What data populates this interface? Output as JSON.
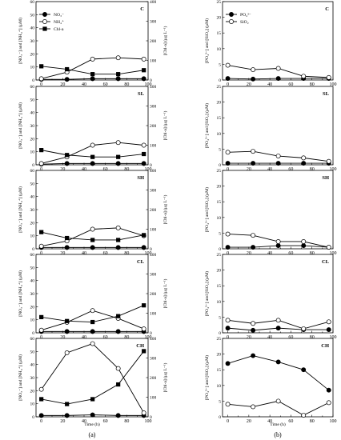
{
  "figure": {
    "left_ylabel": "[NO₃⁻] and [NH₄⁺] (µM)",
    "right_ylabel": "[Chl-a] (µg L⁻¹)",
    "b_ylabel": "[PO₄³⁻] and [SiO₂] (µM)",
    "xlabel": "Time (h)",
    "sublabel_a": "(a)",
    "sublabel_b": "(b)",
    "legend_a": [
      "NO₃⁻",
      "NH₄⁺",
      "Chl-a"
    ],
    "legend_b": [
      "PO₄³⁻",
      "SiO₂"
    ],
    "colors": {
      "ink": "#000000",
      "open": "#ffffff",
      "gray": "#888888"
    }
  },
  "chart_data": [
    {
      "type": "line",
      "panel": "C",
      "group": "a",
      "x": [
        0,
        24,
        48,
        72,
        96
      ],
      "ylim": [
        0,
        60
      ],
      "y2lim": [
        0,
        400
      ],
      "yticks": [
        0,
        10,
        20,
        30,
        40,
        50,
        60
      ],
      "y2ticks": [
        0,
        100,
        200,
        300,
        400
      ],
      "xticks": [
        0,
        10,
        20,
        30,
        40,
        50,
        60,
        70,
        80,
        90,
        100
      ],
      "series": [
        {
          "name": "NO₃⁻",
          "axis": "left",
          "marker": "circle-filled",
          "values": [
            0.5,
            0.5,
            1,
            1,
            1
          ]
        },
        {
          "name": "NH₄⁺",
          "axis": "left",
          "marker": "circle-open",
          "values": [
            1,
            6,
            16,
            17,
            16
          ]
        },
        {
          "name": "Chl-a",
          "axis": "right",
          "marker": "square-filled",
          "values": [
            70,
            55,
            30,
            30,
            50
          ]
        }
      ]
    },
    {
      "type": "line",
      "panel": "SL",
      "group": "a",
      "x": [
        0,
        24,
        48,
        72,
        96
      ],
      "ylim": [
        0,
        60
      ],
      "y2lim": [
        0,
        400
      ],
      "yticks": [
        0,
        10,
        20,
        30,
        40,
        50,
        60
      ],
      "y2ticks": [
        0,
        100,
        200,
        300,
        400
      ],
      "xticks": [
        0,
        10,
        20,
        30,
        40,
        50,
        60,
        70,
        80,
        90,
        100
      ],
      "series": [
        {
          "name": "NO₃⁻",
          "axis": "left",
          "marker": "circle-filled",
          "values": [
            0.5,
            1,
            1,
            1,
            1
          ]
        },
        {
          "name": "NH₄⁺",
          "axis": "left",
          "marker": "circle-open",
          "values": [
            1,
            6,
            15,
            17,
            15
          ]
        },
        {
          "name": "Chl-a",
          "axis": "right",
          "marker": "square-filled",
          "values": [
            75,
            50,
            40,
            40,
            55
          ]
        }
      ]
    },
    {
      "type": "line",
      "panel": "SH",
      "group": "a",
      "x": [
        0,
        24,
        48,
        72,
        96
      ],
      "ylim": [
        0,
        60
      ],
      "y2lim": [
        0,
        400
      ],
      "yticks": [
        0,
        10,
        20,
        30,
        40,
        50,
        60
      ],
      "y2ticks": [
        0,
        100,
        200,
        300,
        400
      ],
      "xticks": [
        0,
        10,
        20,
        30,
        40,
        50,
        60,
        70,
        80,
        90,
        100
      ],
      "series": [
        {
          "name": "NO₃⁻",
          "axis": "left",
          "marker": "circle-filled",
          "values": [
            1,
            1,
            1,
            1,
            1
          ]
        },
        {
          "name": "NH₄⁺",
          "axis": "left",
          "marker": "circle-open",
          "values": [
            2,
            6,
            15,
            16,
            10
          ]
        },
        {
          "name": "Chl-a",
          "axis": "right",
          "marker": "square-filled",
          "values": [
            85,
            55,
            45,
            45,
            70
          ]
        }
      ]
    },
    {
      "type": "line",
      "panel": "CL",
      "group": "a",
      "x": [
        0,
        24,
        48,
        72,
        96
      ],
      "ylim": [
        0,
        60
      ],
      "y2lim": [
        0,
        400
      ],
      "yticks": [
        0,
        10,
        20,
        30,
        40,
        50,
        60
      ],
      "y2ticks": [
        0,
        100,
        200,
        300,
        400
      ],
      "xticks": [
        0,
        10,
        20,
        30,
        40,
        50,
        60,
        70,
        80,
        90,
        100
      ],
      "series": [
        {
          "name": "NO₃⁻",
          "axis": "left",
          "marker": "circle-filled",
          "values": [
            1,
            1,
            1,
            1,
            1
          ]
        },
        {
          "name": "NH₄⁺",
          "axis": "left",
          "marker": "circle-open",
          "values": [
            2,
            8,
            17,
            11,
            3
          ]
        },
        {
          "name": "Chl-a",
          "axis": "right",
          "marker": "square-filled",
          "values": [
            80,
            60,
            55,
            85,
            140
          ]
        }
      ]
    },
    {
      "type": "line",
      "panel": "CH",
      "group": "a",
      "x": [
        0,
        24,
        48,
        72,
        96
      ],
      "ylim": [
        0,
        60
      ],
      "y2lim": [
        0,
        400
      ],
      "yticks": [
        0,
        10,
        20,
        30,
        40,
        50,
        60
      ],
      "y2ticks": [
        0,
        100,
        200,
        300,
        400
      ],
      "xticks": [
        0,
        10,
        20,
        30,
        40,
        50,
        60,
        70,
        80,
        90,
        100
      ],
      "series": [
        {
          "name": "NO₃⁻",
          "axis": "left",
          "marker": "circle-filled",
          "values": [
            1,
            1,
            1.5,
            1,
            1
          ]
        },
        {
          "name": "NH₄⁺",
          "axis": "left",
          "marker": "circle-open",
          "values": [
            21,
            49,
            56,
            37,
            3
          ]
        },
        {
          "name": "Chl-a",
          "axis": "right",
          "marker": "square-filled",
          "values": [
            90,
            65,
            90,
            165,
            335
          ]
        }
      ]
    },
    {
      "type": "line",
      "panel": "C",
      "group": "b",
      "x": [
        0,
        24,
        48,
        72,
        96
      ],
      "ylim": [
        0,
        25
      ],
      "yticks": [
        0,
        5,
        10,
        15,
        20,
        25
      ],
      "xticks": [
        0,
        10,
        20,
        30,
        40,
        50,
        60,
        70,
        80,
        90,
        100
      ],
      "series": [
        {
          "name": "PO₄³⁻",
          "axis": "left",
          "marker": "circle-filled",
          "values": [
            0.5,
            0.3,
            0.5,
            0.5,
            0.5
          ]
        },
        {
          "name": "SiO₂",
          "axis": "left",
          "marker": "circle-open",
          "values": [
            4.7,
            3.3,
            3.7,
            1.2,
            0.8
          ]
        }
      ]
    },
    {
      "type": "line",
      "panel": "SL",
      "group": "b",
      "x": [
        0,
        24,
        48,
        72,
        96
      ],
      "ylim": [
        0,
        25
      ],
      "yticks": [
        0,
        5,
        10,
        15,
        20,
        25
      ],
      "xticks": [
        0,
        10,
        20,
        30,
        40,
        50,
        60,
        70,
        80,
        90,
        100
      ],
      "series": [
        {
          "name": "PO₄³⁻",
          "axis": "left",
          "marker": "circle-filled",
          "values": [
            0.5,
            0.5,
            0.5,
            0.5,
            0.5
          ]
        },
        {
          "name": "SiO₂",
          "axis": "left",
          "marker": "circle-open",
          "values": [
            4,
            4.3,
            2.8,
            2.2,
            1.1
          ]
        }
      ]
    },
    {
      "type": "line",
      "panel": "SH",
      "group": "b",
      "x": [
        0,
        24,
        48,
        72,
        96
      ],
      "ylim": [
        0,
        25
      ],
      "yticks": [
        0,
        5,
        10,
        15,
        20,
        25
      ],
      "xticks": [
        0,
        10,
        20,
        30,
        40,
        50,
        60,
        70,
        80,
        90,
        100
      ],
      "series": [
        {
          "name": "PO₄³⁻",
          "axis": "left",
          "marker": "circle-filled",
          "values": [
            0.5,
            0.5,
            1,
            1,
            0.5
          ]
        },
        {
          "name": "SiO₂",
          "axis": "left",
          "marker": "circle-open",
          "values": [
            4.7,
            4.3,
            2.3,
            2.3,
            0.5
          ]
        }
      ]
    },
    {
      "type": "line",
      "panel": "CL",
      "group": "b",
      "x": [
        0,
        24,
        48,
        72,
        96
      ],
      "ylim": [
        0,
        25
      ],
      "yticks": [
        0,
        5,
        10,
        15,
        20,
        25
      ],
      "xticks": [
        0,
        10,
        20,
        30,
        40,
        50,
        60,
        70,
        80,
        90,
        100
      ],
      "series": [
        {
          "name": "PO₄³⁻",
          "axis": "left",
          "marker": "circle-filled",
          "values": [
            1.5,
            0.8,
            1.5,
            1,
            1
          ]
        },
        {
          "name": "SiO₂",
          "axis": "left",
          "marker": "circle-open",
          "values": [
            4,
            3,
            4,
            1.3,
            3.5
          ]
        }
      ]
    },
    {
      "type": "line",
      "panel": "CH",
      "group": "b",
      "x": [
        0,
        24,
        48,
        72,
        96
      ],
      "ylim": [
        0,
        25
      ],
      "yticks": [
        0,
        5,
        10,
        15,
        20,
        25
      ],
      "xticks": [
        0,
        10,
        20,
        30,
        40,
        50,
        60,
        70,
        80,
        90,
        100
      ],
      "series": [
        {
          "name": "PO₄³⁻",
          "axis": "left",
          "marker": "circle-filled",
          "values": [
            17,
            19.5,
            17.5,
            15,
            8.5
          ]
        },
        {
          "name": "SiO₂",
          "axis": "left",
          "marker": "circle-open",
          "values": [
            4,
            3.2,
            5,
            0.5,
            4.5
          ]
        }
      ]
    }
  ]
}
